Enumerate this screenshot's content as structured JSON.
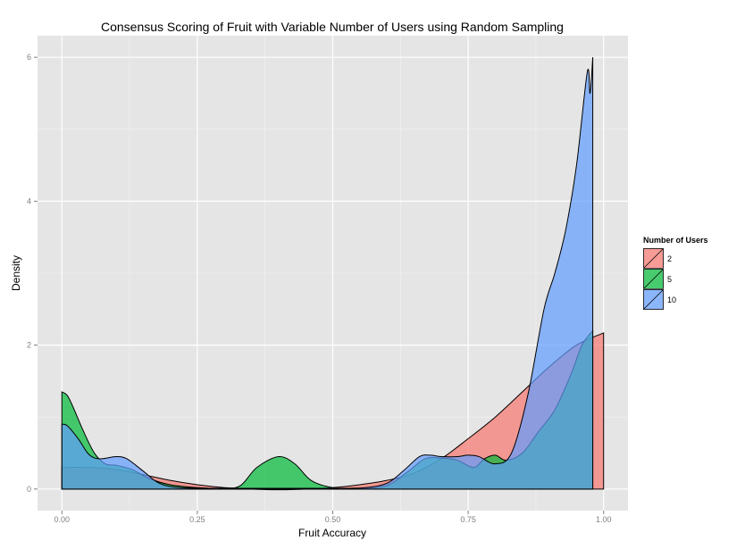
{
  "chart_data": {
    "type": "area",
    "title": "Consensus Scoring of Fruit with Variable Number of Users using Random Sampling",
    "xlabel": "Fruit Accuracy",
    "ylabel": "Density",
    "xlim": [
      -0.045,
      1.045
    ],
    "ylim": [
      -0.3,
      6.3
    ],
    "x_ticks": [
      0,
      0.25,
      0.5,
      0.75,
      1
    ],
    "x_tick_labels": [
      "0.00",
      "0.25",
      "0.50",
      "0.75",
      "1.00"
    ],
    "y_ticks": [
      0,
      2,
      4,
      6
    ],
    "y_tick_labels": [
      "0",
      "2",
      "4",
      "6"
    ],
    "grid": true,
    "legend": {
      "title": "Number of Users",
      "position": "right"
    },
    "series": [
      {
        "name": "2",
        "color": "#F8766D",
        "points": [
          [
            0,
            0.3
          ],
          [
            0.05,
            0.3
          ],
          [
            0.1,
            0.27
          ],
          [
            0.15,
            0.2
          ],
          [
            0.2,
            0.12
          ],
          [
            0.25,
            0.06
          ],
          [
            0.3,
            0.02
          ],
          [
            0.35,
            0.0
          ],
          [
            0.4,
            -0.01
          ],
          [
            0.45,
            0.0
          ],
          [
            0.5,
            0.02
          ],
          [
            0.55,
            0.06
          ],
          [
            0.6,
            0.12
          ],
          [
            0.65,
            0.22
          ],
          [
            0.7,
            0.42
          ],
          [
            0.75,
            0.7
          ],
          [
            0.8,
            1.0
          ],
          [
            0.85,
            1.35
          ],
          [
            0.9,
            1.7
          ],
          [
            0.95,
            2.0
          ],
          [
            1.0,
            2.17
          ]
        ]
      },
      {
        "name": "5",
        "color": "#00BA38",
        "points": [
          [
            0,
            1.35
          ],
          [
            0.01,
            1.3
          ],
          [
            0.02,
            1.15
          ],
          [
            0.04,
            0.8
          ],
          [
            0.06,
            0.5
          ],
          [
            0.08,
            0.35
          ],
          [
            0.1,
            0.33
          ],
          [
            0.13,
            0.27
          ],
          [
            0.16,
            0.15
          ],
          [
            0.2,
            0.06
          ],
          [
            0.25,
            0.02
          ],
          [
            0.3,
            0.01
          ],
          [
            0.33,
            0.05
          ],
          [
            0.36,
            0.3
          ],
          [
            0.4,
            0.45
          ],
          [
            0.43,
            0.35
          ],
          [
            0.46,
            0.12
          ],
          [
            0.5,
            0.02
          ],
          [
            0.55,
            0.01
          ],
          [
            0.6,
            0.05
          ],
          [
            0.64,
            0.25
          ],
          [
            0.67,
            0.42
          ],
          [
            0.7,
            0.43
          ],
          [
            0.73,
            0.4
          ],
          [
            0.76,
            0.3
          ],
          [
            0.78,
            0.42
          ],
          [
            0.8,
            0.47
          ],
          [
            0.82,
            0.4
          ],
          [
            0.85,
            0.5
          ],
          [
            0.88,
            0.8
          ],
          [
            0.91,
            1.1
          ],
          [
            0.94,
            1.6
          ],
          [
            0.96,
            2.0
          ],
          [
            0.98,
            2.2
          ]
        ]
      },
      {
        "name": "10",
        "color": "#619CFF",
        "points": [
          [
            0,
            0.9
          ],
          [
            0.01,
            0.88
          ],
          [
            0.03,
            0.7
          ],
          [
            0.05,
            0.48
          ],
          [
            0.07,
            0.42
          ],
          [
            0.1,
            0.45
          ],
          [
            0.12,
            0.42
          ],
          [
            0.15,
            0.25
          ],
          [
            0.18,
            0.08
          ],
          [
            0.22,
            0.02
          ],
          [
            0.3,
            0.01
          ],
          [
            0.4,
            0.01
          ],
          [
            0.5,
            0.01
          ],
          [
            0.56,
            0.02
          ],
          [
            0.6,
            0.08
          ],
          [
            0.63,
            0.25
          ],
          [
            0.66,
            0.45
          ],
          [
            0.68,
            0.47
          ],
          [
            0.7,
            0.45
          ],
          [
            0.73,
            0.45
          ],
          [
            0.75,
            0.47
          ],
          [
            0.77,
            0.45
          ],
          [
            0.8,
            0.35
          ],
          [
            0.83,
            0.5
          ],
          [
            0.86,
            1.3
          ],
          [
            0.89,
            2.5
          ],
          [
            0.91,
            3.0
          ],
          [
            0.93,
            3.6
          ],
          [
            0.95,
            4.5
          ],
          [
            0.97,
            5.8
          ],
          [
            0.975,
            5.5
          ],
          [
            0.98,
            6.0
          ]
        ]
      }
    ]
  }
}
